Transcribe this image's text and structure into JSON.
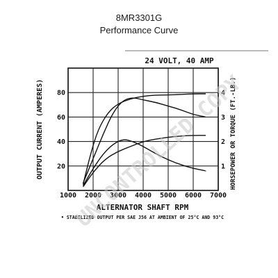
{
  "header": {
    "title": "8MR3301G",
    "subtitle": "Performance Curve"
  },
  "chart_data": {
    "type": "line",
    "title": "24 VOLT, 40 AMP",
    "xlabel": "ALTERNATOR SHAFT RPM",
    "ylabel": "OUTPUT CURRENT (AMPERES)",
    "ylabel_right": "HORSEPOWER OR TORQUE (FT.-LB.)",
    "footnote": "• STABILIZED OUTPUT PER SAE J56 AT AMBIENT OF 25°C AND 93°C",
    "xlim": [
      1000,
      7000
    ],
    "ylim": [
      0,
      100
    ],
    "ylim_right": [
      0,
      5
    ],
    "x_ticks": [
      "1000",
      "2000",
      "3000",
      "4000",
      "5000",
      "6000",
      "7000"
    ],
    "y_ticks": [
      "20",
      "40",
      "60",
      "80"
    ],
    "y_right_ticks": [
      "1",
      "2",
      "3",
      "4"
    ],
    "grid": true,
    "series": [
      {
        "name": "",
        "axis": "left",
        "x": [
          1600,
          1900,
          2200,
          2600,
          3000,
          3500,
          4000,
          4500,
          5000,
          5500,
          6000,
          6500
        ],
        "y": [
          5,
          30,
          50,
          64,
          71,
          75,
          77,
          78,
          78,
          78.5,
          79,
          79
        ]
      },
      {
        "name": "",
        "axis": "left",
        "x": [
          1600,
          2000,
          2500,
          3000,
          3500,
          4000,
          4500,
          5000,
          5500,
          6000,
          6500
        ],
        "y": [
          3,
          15,
          26,
          32,
          36,
          40,
          42,
          43.5,
          44.5,
          45,
          45
        ]
      },
      {
        "name": "",
        "axis": "right",
        "x": [
          1600,
          2000,
          2400,
          2800,
          3200,
          3600,
          4000,
          4500,
          5000,
          5500,
          6000,
          6500
        ],
        "y": [
          0.3,
          1.3,
          2.3,
          3.2,
          3.7,
          3.8,
          3.7,
          3.6,
          3.45,
          3.3,
          3.1,
          3.0
        ]
      },
      {
        "name": "",
        "axis": "right",
        "x": [
          1600,
          2000,
          2400,
          2800,
          3200,
          3600,
          4000,
          4500,
          5000,
          5500,
          6000,
          6500
        ],
        "y": [
          0.2,
          0.9,
          1.5,
          1.9,
          2.1,
          2.0,
          1.8,
          1.5,
          1.25,
          1.05,
          0.9,
          0.8
        ]
      }
    ],
    "line_color": "#111111"
  },
  "watermark": "UNCONTROLLED COPY"
}
